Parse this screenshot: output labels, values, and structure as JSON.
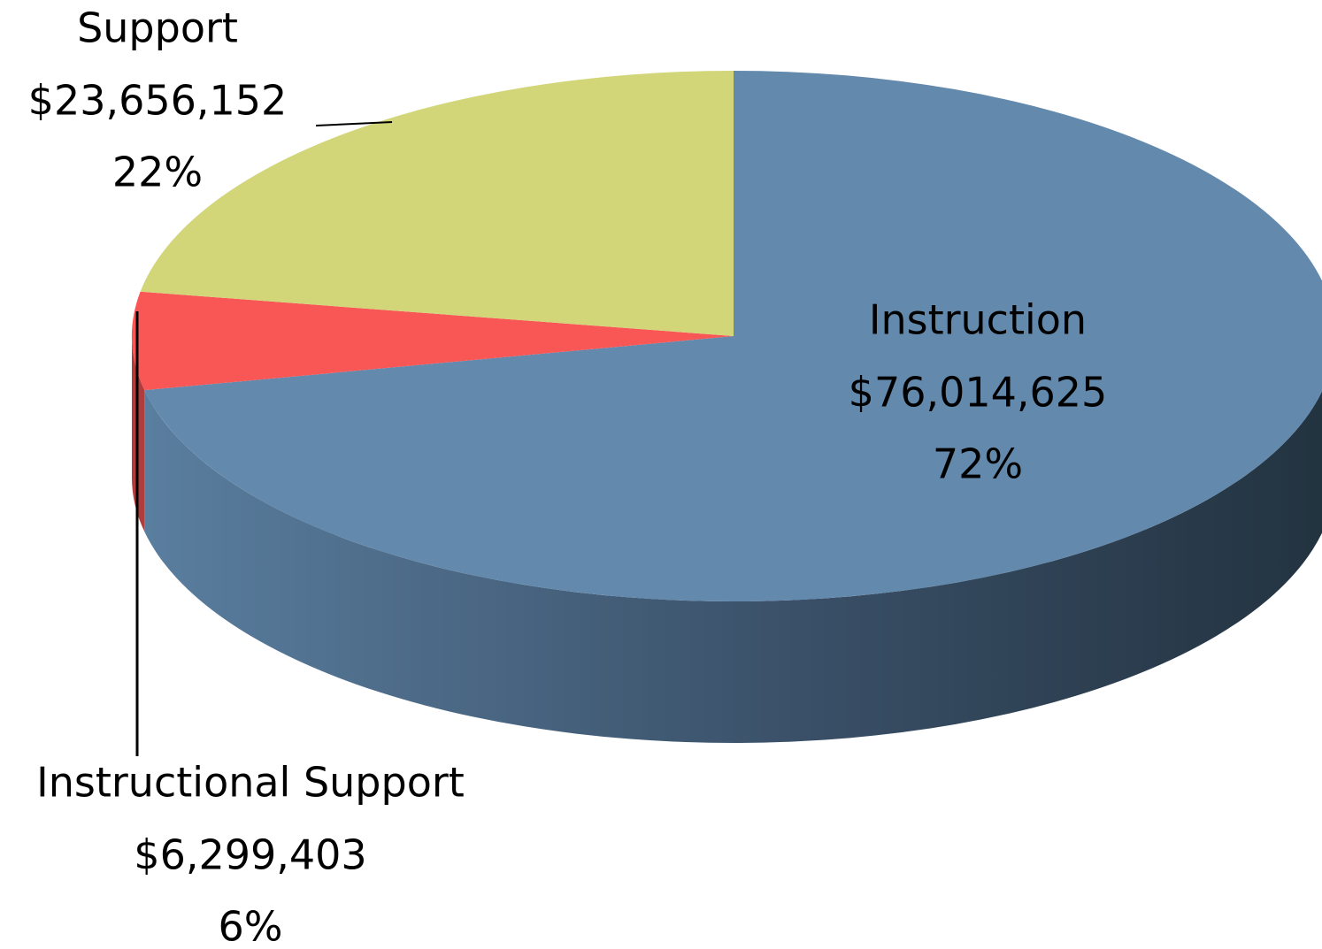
{
  "chart_data": {
    "type": "pie",
    "categories": [
      "Instruction",
      "Instructional Support",
      "Support"
    ],
    "values": [
      76014625,
      6299403,
      23656152
    ],
    "value_labels": [
      "$76,014,625",
      "$6,299,403",
      "$23,656,152"
    ],
    "percentages": [
      72,
      6,
      22
    ],
    "percentage_labels": [
      "72%",
      "6%",
      "22%"
    ],
    "colors": [
      "#6389ad",
      "#f95656",
      "#d2d679"
    ],
    "side_colors": [
      "#55789a",
      "#b03c3c",
      "#9a9d55"
    ]
  }
}
